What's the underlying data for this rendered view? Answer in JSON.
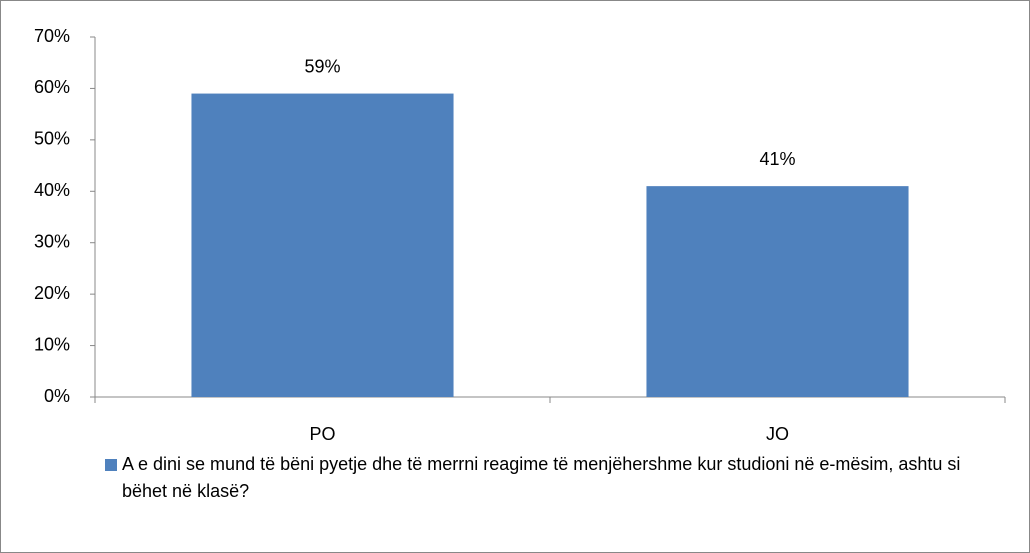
{
  "chart_data": {
    "type": "bar",
    "categories": [
      "PO",
      "JO"
    ],
    "series": [
      {
        "name": "A e dini se mund të bëni pyetje dhe të merrni reagime të menjëhershme kur studioni në e-mësim, ashtu si bëhet në klasë?",
        "color": "#4f81bd",
        "values": [
          59,
          41
        ],
        "value_labels": [
          "59%",
          "41%"
        ]
      }
    ],
    "ylim": [
      0,
      70
    ],
    "yticks": [
      {
        "value": 0,
        "label": "0%"
      },
      {
        "value": 10,
        "label": "10%"
      },
      {
        "value": 20,
        "label": "20%"
      },
      {
        "value": 30,
        "label": "30%"
      },
      {
        "value": 40,
        "label": "40%"
      },
      {
        "value": 50,
        "label": "50%"
      },
      {
        "value": 60,
        "label": "60%"
      },
      {
        "value": 70,
        "label": "70%"
      }
    ],
    "grid": false,
    "legend": "bottom"
  }
}
